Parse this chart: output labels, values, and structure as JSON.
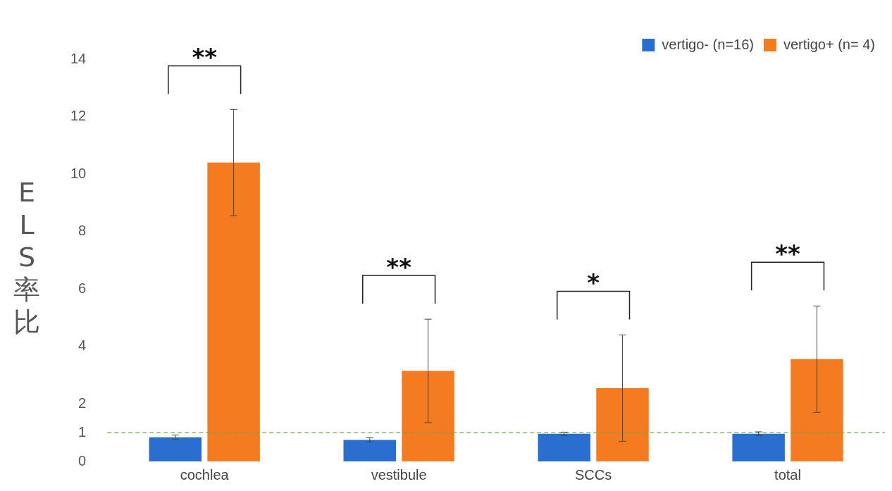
{
  "chart_data": {
    "type": "bar",
    "ylabel": "ELS率比",
    "categories": [
      "cochlea",
      "vestibule",
      "SCCs",
      "total"
    ],
    "series": [
      {
        "name": "vertigo- (n=16)",
        "color": "#2a6fcf",
        "values": [
          0.84,
          0.75,
          0.96,
          0.96
        ],
        "errors": [
          0.08,
          0.07,
          0.06,
          0.07
        ]
      },
      {
        "name": "vertigo+ (n= 4)",
        "color": "#f47b20",
        "values": [
          10.4,
          3.15,
          2.55,
          3.56
        ],
        "errors": [
          1.85,
          1.8,
          1.85,
          1.85
        ]
      }
    ],
    "ylim": [
      0,
      14
    ],
    "yticks": [
      0,
      1,
      2,
      4,
      6,
      8,
      10,
      12,
      14
    ],
    "grid": false,
    "legend": "top right",
    "ref_lines": [
      {
        "axis": "y",
        "value": 1,
        "color": "#70ad47",
        "line_style": "dashed"
      }
    ],
    "annotations": [
      "**",
      "**",
      "*",
      "**"
    ]
  }
}
